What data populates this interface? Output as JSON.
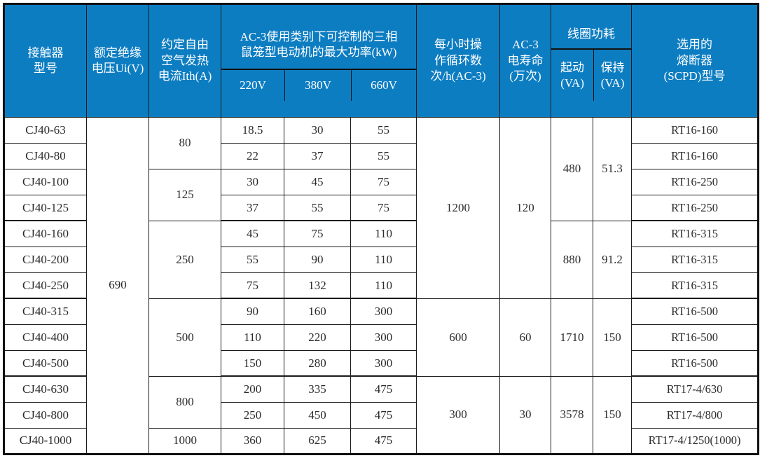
{
  "colors": {
    "header_bg": "#0d7dc2",
    "header_text": "#ffffff",
    "border": "#1b1b1b",
    "body_text": "#2b2b2b"
  },
  "header": {
    "contactor_model": "接触器\n型号",
    "rated_insulation_voltage": "额定绝缘\n电压Ui(V)",
    "free_air_thermal_current": "约定自由\n空气发热\n电流Ith(A)",
    "ac3_max_power_group": "AC-3使用类别下可控制的三相\n鼠笼型电动机的最大功率(kW)",
    "power_220v": "220V",
    "power_380v": "380V",
    "power_660v": "660V",
    "operating_cycles": "每小时操\n作循环数\n次/h(AC-3)",
    "ac3_electrical_life": "AC-3\n电寿命\n(万次)",
    "coil_power_group": "线圈功耗",
    "coil_start": "起动\n(VA)",
    "coil_hold": "保持\n(VA)",
    "fuse_scpd": "选用的\n熔断器\n(SCPD)型号"
  },
  "table": {
    "group_end_rows": [
      4,
      7,
      10
    ],
    "rows": [
      [
        {
          "t": "CJ40-63"
        },
        {
          "t": "690",
          "rs": 13
        },
        {
          "t": "80",
          "rs": 2
        },
        {
          "t": "18.5"
        },
        {
          "t": "30"
        },
        {
          "t": "55"
        },
        {
          "t": "1200",
          "rs": 7
        },
        {
          "t": "120",
          "rs": 7
        },
        {
          "t": "480",
          "rs": 4
        },
        {
          "t": "51.3",
          "rs": 4
        },
        {
          "t": "RT16-160",
          "fuse": true
        }
      ],
      [
        {
          "t": "CJ40-80"
        },
        {
          "t": "22"
        },
        {
          "t": "37"
        },
        {
          "t": "55"
        },
        {
          "t": "RT16-160",
          "fuse": true
        }
      ],
      [
        {
          "t": "CJ40-100"
        },
        {
          "t": "125",
          "rs": 2
        },
        {
          "t": "30"
        },
        {
          "t": "45"
        },
        {
          "t": "75"
        },
        {
          "t": "RT16-250",
          "fuse": true
        }
      ],
      [
        {
          "t": "CJ40-125"
        },
        {
          "t": "37"
        },
        {
          "t": "55"
        },
        {
          "t": "75"
        },
        {
          "t": "RT16-250",
          "fuse": true
        }
      ],
      [
        {
          "t": "CJ40-160"
        },
        {
          "t": "250",
          "rs": 3
        },
        {
          "t": "45"
        },
        {
          "t": "75"
        },
        {
          "t": "110"
        },
        {
          "t": "880",
          "rs": 3
        },
        {
          "t": "91.2",
          "rs": 3
        },
        {
          "t": "RT16-315",
          "fuse": true
        }
      ],
      [
        {
          "t": "CJ40-200"
        },
        {
          "t": "55"
        },
        {
          "t": "90"
        },
        {
          "t": "110"
        },
        {
          "t": "RT16-315",
          "fuse": true
        }
      ],
      [
        {
          "t": "CJ40-250"
        },
        {
          "t": "75"
        },
        {
          "t": "132"
        },
        {
          "t": "110"
        },
        {
          "t": "RT16-315",
          "fuse": true
        }
      ],
      [
        {
          "t": "CJ40-315"
        },
        {
          "t": "500",
          "rs": 3
        },
        {
          "t": "90"
        },
        {
          "t": "160"
        },
        {
          "t": "300"
        },
        {
          "t": "600",
          "rs": 3
        },
        {
          "t": "60",
          "rs": 3
        },
        {
          "t": "1710",
          "rs": 3
        },
        {
          "t": "150",
          "rs": 3
        },
        {
          "t": "RT16-500",
          "fuse": true
        }
      ],
      [
        {
          "t": "CJ40-400"
        },
        {
          "t": "110"
        },
        {
          "t": "220"
        },
        {
          "t": "300"
        },
        {
          "t": "RT16-500",
          "fuse": true
        }
      ],
      [
        {
          "t": "CJ40-500"
        },
        {
          "t": "150"
        },
        {
          "t": "280"
        },
        {
          "t": "300"
        },
        {
          "t": "RT16-500",
          "fuse": true
        }
      ],
      [
        {
          "t": "CJ40-630"
        },
        {
          "t": "800",
          "rs": 2
        },
        {
          "t": "200"
        },
        {
          "t": "335"
        },
        {
          "t": "475"
        },
        {
          "t": "300",
          "rs": 3
        },
        {
          "t": "30",
          "rs": 3
        },
        {
          "t": "3578",
          "rs": 3
        },
        {
          "t": "150",
          "rs": 3
        },
        {
          "t": "RT17-4/630",
          "fuse": true
        }
      ],
      [
        {
          "t": "CJ40-800"
        },
        {
          "t": "250"
        },
        {
          "t": "450"
        },
        {
          "t": "475"
        },
        {
          "t": "RT17-4/800",
          "fuse": true
        }
      ],
      [
        {
          "t": "CJ40-1000"
        },
        {
          "t": "1000"
        },
        {
          "t": "360"
        },
        {
          "t": "625"
        },
        {
          "t": "475"
        },
        {
          "t": "RT17-4/1250(1000)",
          "fuse": true
        }
      ]
    ]
  }
}
